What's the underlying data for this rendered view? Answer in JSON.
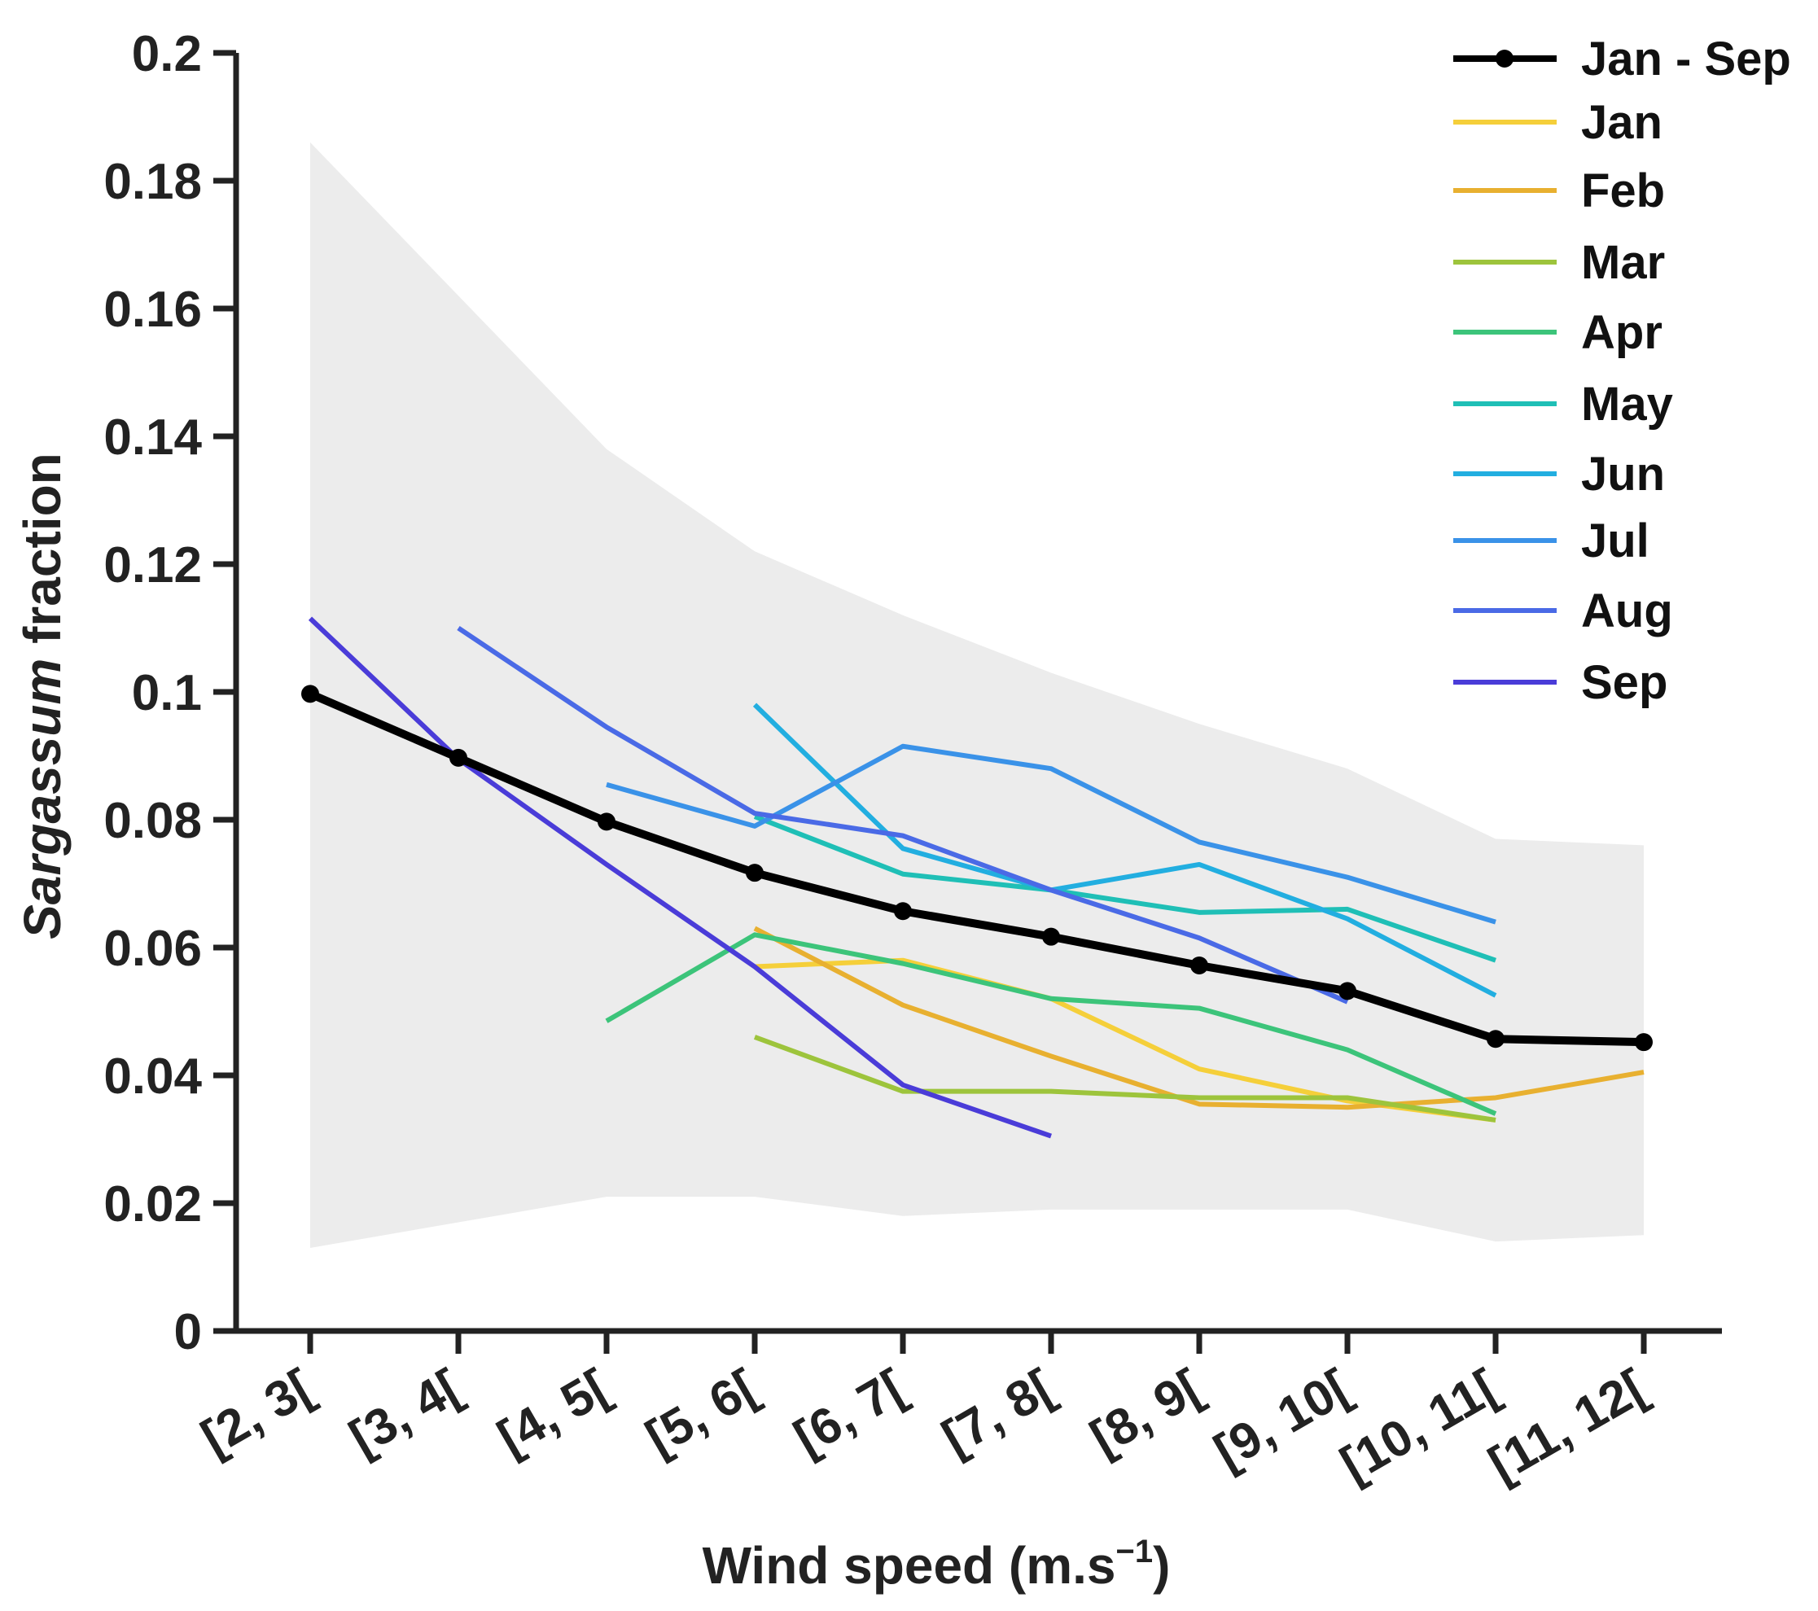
{
  "chart_data": {
    "type": "line",
    "xlabel_main": "Wind speed (m.s",
    "xlabel_sup": "−1",
    "xlabel_close": ")",
    "ylabel_italic": "Sargassum",
    "ylabel_rest": " fraction",
    "ylim": [
      0,
      0.2
    ],
    "yticks": [
      "0",
      "0.02",
      "0.04",
      "0.06",
      "0.08",
      "0.1",
      "0.12",
      "0.14",
      "0.16",
      "0.18",
      "0.2"
    ],
    "categories": [
      "[2, 3[",
      "[3, 4[",
      "[4, 5[",
      "[5, 6[",
      "[6, 7[",
      "[7, 8[",
      "[8, 9[",
      "[9, 10[",
      "[10, 11[",
      "[11, 12["
    ],
    "band": {
      "upper": [
        0.186,
        0.162,
        0.138,
        0.122,
        0.112,
        0.103,
        0.095,
        0.088,
        0.077,
        0.076
      ],
      "lower": [
        0.013,
        0.017,
        0.021,
        0.021,
        0.018,
        0.019,
        0.019,
        0.019,
        0.014,
        0.015
      ]
    },
    "series": [
      {
        "name": "Jan - Sep",
        "color": "#000000",
        "markers": true,
        "values": [
          0.0997,
          0.0897,
          0.0797,
          0.0717,
          0.0657,
          0.0617,
          0.0572,
          0.0532,
          0.0457,
          0.0452
        ]
      },
      {
        "name": "Jan",
        "color": "#f5cf3a",
        "values": [
          null,
          null,
          null,
          0.057,
          0.058,
          0.052,
          0.041,
          0.036,
          0.033,
          null
        ]
      },
      {
        "name": "Feb",
        "color": "#e8b030",
        "values": [
          null,
          null,
          null,
          0.063,
          0.051,
          0.043,
          0.0355,
          0.035,
          0.0365,
          0.0405
        ]
      },
      {
        "name": "Mar",
        "color": "#9dc43c",
        "values": [
          null,
          null,
          null,
          0.046,
          0.0375,
          0.0375,
          0.0365,
          0.0365,
          0.033,
          null
        ]
      },
      {
        "name": "Apr",
        "color": "#3cc47a",
        "values": [
          null,
          null,
          0.0485,
          0.062,
          0.0575,
          0.052,
          0.0505,
          0.044,
          0.034,
          null
        ]
      },
      {
        "name": "May",
        "color": "#1fbfb6",
        "values": [
          null,
          null,
          null,
          0.0805,
          0.0715,
          0.069,
          0.0655,
          0.066,
          0.058,
          null
        ]
      },
      {
        "name": "Jun",
        "color": "#22aee0",
        "values": [
          null,
          null,
          null,
          0.098,
          0.0755,
          0.069,
          0.073,
          0.0645,
          0.0525,
          null
        ]
      },
      {
        "name": "Jul",
        "color": "#3a92e8",
        "values": [
          null,
          null,
          0.0855,
          0.079,
          0.0915,
          0.088,
          0.0765,
          0.071,
          0.064,
          null
        ]
      },
      {
        "name": "Aug",
        "color": "#4a6ae6",
        "values": [
          null,
          0.11,
          0.0945,
          0.081,
          0.0775,
          0.069,
          0.0615,
          0.0515,
          null,
          null
        ]
      },
      {
        "name": "Sep",
        "color": "#4a3cd8",
        "values": [
          0.1115,
          0.0895,
          0.073,
          0.057,
          0.0385,
          0.0305,
          null,
          null,
          null,
          null
        ]
      }
    ]
  }
}
